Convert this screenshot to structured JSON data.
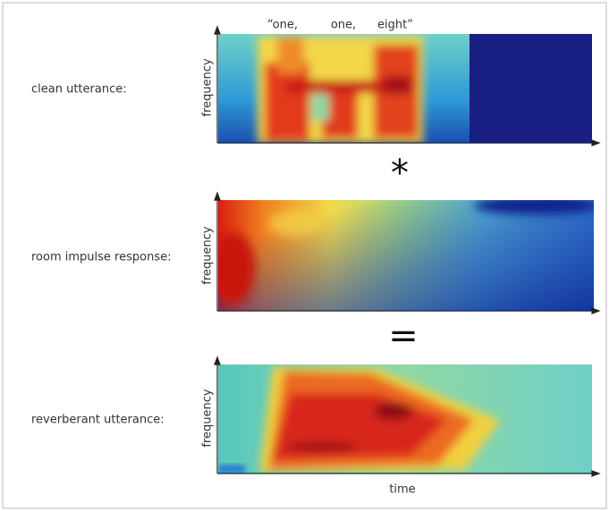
{
  "panels": [
    {
      "label": "clean utterance:",
      "y_label": "frequency"
    },
    {
      "label": "room impulse response:",
      "y_label": "frequency"
    },
    {
      "label": "reverberant utterance:",
      "y_label": "frequency"
    }
  ],
  "words": [
    "“one,",
    "one,",
    "eight”"
  ],
  "operators": [
    "*",
    "="
  ],
  "x_label": "time"
}
